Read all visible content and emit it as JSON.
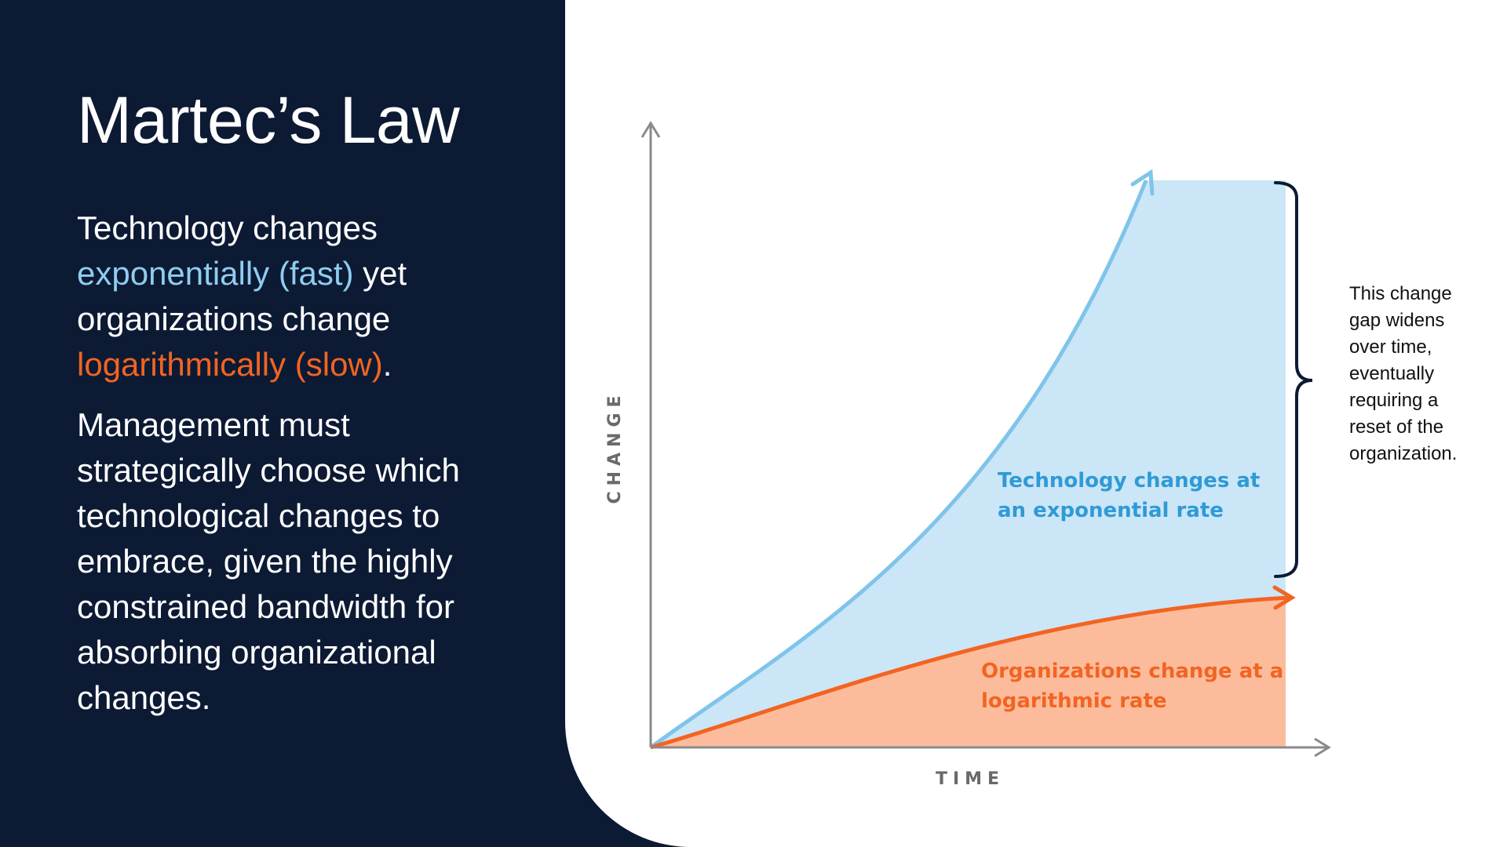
{
  "slide": {
    "title": "Martec’s Law",
    "paragraph1": {
      "part1": "Technology changes ",
      "fast_phrase": "exponentially (fast)",
      "part2": " yet organizations change ",
      "slow_phrase": "logarithmically (slow)",
      "part3": "."
    },
    "paragraph2": "Management must strategically choose which technological changes to embrace, given the highly constrained bandwidth for absorbing organizational changes."
  },
  "diagram": {
    "y_axis_label": "CHANGE",
    "x_axis_label": "TIME",
    "technology_label": [
      "Technology changes at",
      "an exponential rate"
    ],
    "organization_label": [
      "Organizations change at a",
      "logarithmic rate"
    ],
    "gap_note": [
      "This change",
      "gap widens",
      "over time,",
      "eventually",
      "requiring a",
      "reset of the",
      "organization."
    ]
  },
  "colors": {
    "background": "#0c1a34",
    "technology_line": "#7fc4ea",
    "technology_fill": "#cbe6f7",
    "technology_label": "#2f9ad6",
    "organization_line": "#f26422",
    "organization_fill": "#fcbc9c",
    "axis": "#8a8a8a",
    "brace": "#0c1a34"
  }
}
